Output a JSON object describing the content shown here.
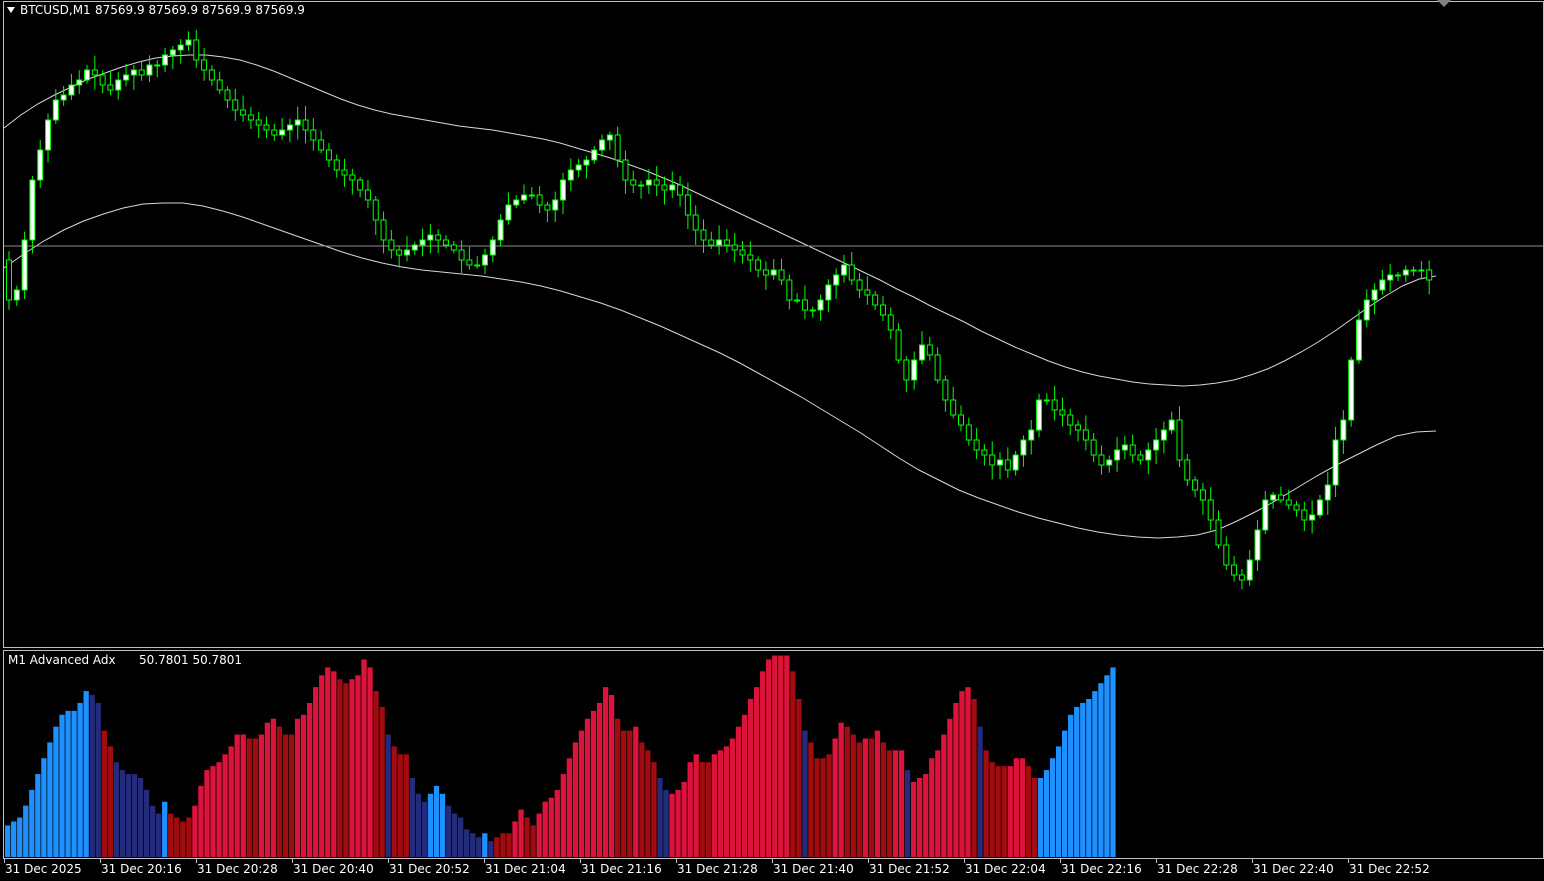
{
  "header": {
    "symbol": "BTCUSD,M1",
    "ohlc": "87569.9 87569.9 87569.9 87569.9"
  },
  "indicator": {
    "name": "M1 Advanced Adx",
    "values": "50.7801 50.7801"
  },
  "colors": {
    "background": "#000000",
    "frame": "#c0c0c0",
    "bull": "#00ff00",
    "bear": "#00ff00",
    "bull_body": "#ffffff",
    "bear_body": "#000000",
    "band": "#d8d8d8",
    "bid_line": "#8c8c8c",
    "hist_light_blue": "#1e90ff",
    "hist_dark_blue": "#232b7a",
    "hist_crimson": "#dc143c",
    "hist_dark_red": "#a00c0f"
  },
  "chart_data": {
    "type": "candlestick",
    "title": "BTCUSD,M1",
    "bid_price": 87569.9,
    "time_axis": [
      "31 Dec 2025",
      "31 Dec 20:16",
      "31 Dec 20:28",
      "31 Dec 20:40",
      "31 Dec 20:52",
      "31 Dec 21:04",
      "31 Dec 21:16",
      "31 Dec 21:28",
      "31 Dec 21:40",
      "31 Dec 21:52",
      "31 Dec 22:04",
      "31 Dec 22:16",
      "31 Dec 22:28",
      "31 Dec 22:40",
      "31 Dec 22:52"
    ],
    "price_path": [
      260,
      300,
      290,
      240,
      180,
      150,
      120,
      100,
      95,
      85,
      80,
      70,
      75,
      85,
      90,
      80,
      75,
      70,
      75,
      65,
      65,
      55,
      50,
      45,
      40,
      60,
      70,
      80,
      90,
      100,
      110,
      115,
      120,
      125,
      130,
      135,
      130,
      125,
      120,
      130,
      140,
      150,
      160,
      170,
      175,
      180,
      190,
      200,
      220,
      240,
      250,
      255,
      250,
      245,
      240,
      235,
      240,
      245,
      250,
      260,
      265,
      265,
      255,
      240,
      220,
      205,
      200,
      195,
      195,
      205,
      210,
      200,
      180,
      170,
      165,
      160,
      150,
      140,
      135,
      160,
      180,
      185,
      185,
      180,
      185,
      190,
      185,
      195,
      215,
      230,
      240,
      245,
      240,
      245,
      250,
      255,
      260,
      270,
      275,
      270,
      280,
      300,
      300,
      310,
      310,
      300,
      285,
      275,
      265,
      280,
      290,
      295,
      305,
      315,
      330,
      360,
      380,
      360,
      345,
      355,
      380,
      400,
      415,
      425,
      440,
      450,
      455,
      465,
      460,
      470,
      455,
      440,
      430,
      400,
      400,
      410,
      415,
      425,
      430,
      440,
      455,
      465,
      460,
      450,
      445,
      455,
      460,
      450,
      440,
      430,
      420,
      460,
      480,
      490,
      500,
      520,
      545,
      565,
      575,
      580,
      560,
      530,
      500,
      495,
      500,
      505,
      510,
      520,
      515,
      500,
      485,
      440,
      420,
      360,
      320,
      300,
      290,
      280,
      275,
      275,
      270,
      270,
      270,
      280
    ],
    "upper_band": [
      128,
      115,
      104,
      95,
      87,
      79,
      73,
      67,
      62,
      58,
      56,
      55,
      55,
      57,
      60,
      65,
      71,
      78,
      85,
      92,
      99,
      105,
      110,
      114,
      117,
      120,
      123,
      126,
      128,
      130,
      133,
      136,
      139,
      143,
      148,
      153,
      158,
      164,
      170,
      177,
      184,
      192,
      200,
      208,
      216,
      224,
      232,
      240,
      248,
      256,
      264,
      272,
      280,
      289,
      297,
      306,
      314,
      322,
      331,
      339,
      347,
      354,
      361,
      367,
      372,
      376,
      379,
      382,
      384,
      385,
      386,
      385,
      383,
      380,
      375,
      369,
      361,
      352,
      342,
      331,
      319,
      307,
      296,
      286,
      279,
      276
    ],
    "lower_band": [
      268,
      254,
      241,
      230,
      221,
      214,
      208,
      204,
      203,
      203,
      206,
      211,
      217,
      224,
      231,
      238,
      245,
      252,
      258,
      263,
      267,
      270,
      272,
      274,
      276,
      279,
      282,
      286,
      291,
      297,
      303,
      310,
      318,
      326,
      335,
      344,
      353,
      363,
      374,
      385,
      396,
      408,
      420,
      432,
      445,
      458,
      470,
      480,
      490,
      498,
      505,
      512,
      518,
      523,
      528,
      532,
      535,
      537,
      538,
      537,
      535,
      530,
      521,
      511,
      500,
      488,
      476,
      465,
      455,
      445,
      436,
      432,
      431
    ],
    "histogram": [
      {
        "v": 8,
        "c": "hist_light_blue"
      },
      {
        "v": 9,
        "c": "hist_light_blue"
      },
      {
        "v": 10,
        "c": "hist_light_blue"
      },
      {
        "v": 13,
        "c": "hist_light_blue"
      },
      {
        "v": 17,
        "c": "hist_light_blue"
      },
      {
        "v": 21,
        "c": "hist_light_blue"
      },
      {
        "v": 25,
        "c": "hist_light_blue"
      },
      {
        "v": 29,
        "c": "hist_light_blue"
      },
      {
        "v": 33,
        "c": "hist_light_blue"
      },
      {
        "v": 36,
        "c": "hist_light_blue"
      },
      {
        "v": 37,
        "c": "hist_light_blue"
      },
      {
        "v": 37,
        "c": "hist_light_blue"
      },
      {
        "v": 39,
        "c": "hist_light_blue"
      },
      {
        "v": 42,
        "c": "hist_light_blue"
      },
      {
        "v": 41,
        "c": "hist_dark_blue"
      },
      {
        "v": 39,
        "c": "hist_dark_blue"
      },
      {
        "v": 32,
        "c": "hist_dark_red"
      },
      {
        "v": 28,
        "c": "hist_dark_red"
      },
      {
        "v": 24,
        "c": "hist_dark_blue"
      },
      {
        "v": 22,
        "c": "hist_dark_blue"
      },
      {
        "v": 21,
        "c": "hist_dark_blue"
      },
      {
        "v": 21,
        "c": "hist_dark_blue"
      },
      {
        "v": 20,
        "c": "hist_dark_blue"
      },
      {
        "v": 17,
        "c": "hist_dark_blue"
      },
      {
        "v": 13,
        "c": "hist_dark_blue"
      },
      {
        "v": 11,
        "c": "hist_dark_blue"
      },
      {
        "v": 14,
        "c": "hist_light_blue"
      },
      {
        "v": 11,
        "c": "hist_dark_red"
      },
      {
        "v": 10,
        "c": "hist_dark_red"
      },
      {
        "v": 9,
        "c": "hist_dark_red"
      },
      {
        "v": 10,
        "c": "hist_dark_red"
      },
      {
        "v": 13,
        "c": "hist_crimson"
      },
      {
        "v": 18,
        "c": "hist_crimson"
      },
      {
        "v": 22,
        "c": "hist_crimson"
      },
      {
        "v": 23,
        "c": "hist_crimson"
      },
      {
        "v": 24,
        "c": "hist_crimson"
      },
      {
        "v": 26,
        "c": "hist_crimson"
      },
      {
        "v": 28,
        "c": "hist_crimson"
      },
      {
        "v": 31,
        "c": "hist_crimson"
      },
      {
        "v": 31,
        "c": "hist_crimson"
      },
      {
        "v": 30,
        "c": "hist_dark_red"
      },
      {
        "v": 30,
        "c": "hist_dark_red"
      },
      {
        "v": 31,
        "c": "hist_crimson"
      },
      {
        "v": 34,
        "c": "hist_crimson"
      },
      {
        "v": 35,
        "c": "hist_crimson"
      },
      {
        "v": 33,
        "c": "hist_dark_red"
      },
      {
        "v": 31,
        "c": "hist_dark_red"
      },
      {
        "v": 31,
        "c": "hist_dark_red"
      },
      {
        "v": 35,
        "c": "hist_crimson"
      },
      {
        "v": 36,
        "c": "hist_crimson"
      },
      {
        "v": 39,
        "c": "hist_crimson"
      },
      {
        "v": 43,
        "c": "hist_crimson"
      },
      {
        "v": 46,
        "c": "hist_crimson"
      },
      {
        "v": 48,
        "c": "hist_crimson"
      },
      {
        "v": 47,
        "c": "hist_crimson"
      },
      {
        "v": 45,
        "c": "hist_dark_red"
      },
      {
        "v": 44,
        "c": "hist_dark_red"
      },
      {
        "v": 45,
        "c": "hist_crimson"
      },
      {
        "v": 46,
        "c": "hist_crimson"
      },
      {
        "v": 50,
        "c": "hist_crimson"
      },
      {
        "v": 48,
        "c": "hist_crimson"
      },
      {
        "v": 42,
        "c": "hist_dark_red"
      },
      {
        "v": 38,
        "c": "hist_dark_red"
      },
      {
        "v": 31,
        "c": "hist_dark_blue"
      },
      {
        "v": 28,
        "c": "hist_dark_red"
      },
      {
        "v": 26,
        "c": "hist_dark_red"
      },
      {
        "v": 26,
        "c": "hist_dark_red"
      },
      {
        "v": 20,
        "c": "hist_dark_blue"
      },
      {
        "v": 16,
        "c": "hist_dark_blue"
      },
      {
        "v": 14,
        "c": "hist_dark_blue"
      },
      {
        "v": 16,
        "c": "hist_light_blue"
      },
      {
        "v": 18,
        "c": "hist_light_blue"
      },
      {
        "v": 16,
        "c": "hist_light_blue"
      },
      {
        "v": 13,
        "c": "hist_dark_blue"
      },
      {
        "v": 11,
        "c": "hist_dark_blue"
      },
      {
        "v": 10,
        "c": "hist_dark_blue"
      },
      {
        "v": 7,
        "c": "hist_dark_blue"
      },
      {
        "v": 6,
        "c": "hist_dark_blue"
      },
      {
        "v": 5,
        "c": "hist_dark_blue"
      },
      {
        "v": 6,
        "c": "hist_light_blue"
      },
      {
        "v": 4,
        "c": "hist_dark_blue"
      },
      {
        "v": 5,
        "c": "hist_dark_red"
      },
      {
        "v": 6,
        "c": "hist_dark_red"
      },
      {
        "v": 6,
        "c": "hist_dark_red"
      },
      {
        "v": 9,
        "c": "hist_crimson"
      },
      {
        "v": 12,
        "c": "hist_crimson"
      },
      {
        "v": 10,
        "c": "hist_dark_red"
      },
      {
        "v": 8,
        "c": "hist_dark_red"
      },
      {
        "v": 11,
        "c": "hist_crimson"
      },
      {
        "v": 14,
        "c": "hist_crimson"
      },
      {
        "v": 15,
        "c": "hist_crimson"
      },
      {
        "v": 17,
        "c": "hist_crimson"
      },
      {
        "v": 21,
        "c": "hist_crimson"
      },
      {
        "v": 25,
        "c": "hist_crimson"
      },
      {
        "v": 29,
        "c": "hist_crimson"
      },
      {
        "v": 32,
        "c": "hist_crimson"
      },
      {
        "v": 35,
        "c": "hist_crimson"
      },
      {
        "v": 37,
        "c": "hist_crimson"
      },
      {
        "v": 39,
        "c": "hist_crimson"
      },
      {
        "v": 43,
        "c": "hist_crimson"
      },
      {
        "v": 41,
        "c": "hist_crimson"
      },
      {
        "v": 35,
        "c": "hist_dark_red"
      },
      {
        "v": 32,
        "c": "hist_dark_red"
      },
      {
        "v": 32,
        "c": "hist_dark_red"
      },
      {
        "v": 33,
        "c": "hist_crimson"
      },
      {
        "v": 29,
        "c": "hist_dark_red"
      },
      {
        "v": 27,
        "c": "hist_dark_red"
      },
      {
        "v": 24,
        "c": "hist_dark_red"
      },
      {
        "v": 20,
        "c": "hist_dark_blue"
      },
      {
        "v": 17,
        "c": "hist_dark_blue"
      },
      {
        "v": 16,
        "c": "hist_crimson"
      },
      {
        "v": 17,
        "c": "hist_crimson"
      },
      {
        "v": 19,
        "c": "hist_crimson"
      },
      {
        "v": 24,
        "c": "hist_crimson"
      },
      {
        "v": 26,
        "c": "hist_crimson"
      },
      {
        "v": 24,
        "c": "hist_dark_red"
      },
      {
        "v": 24,
        "c": "hist_dark_red"
      },
      {
        "v": 26,
        "c": "hist_crimson"
      },
      {
        "v": 27,
        "c": "hist_crimson"
      },
      {
        "v": 28,
        "c": "hist_crimson"
      },
      {
        "v": 30,
        "c": "hist_crimson"
      },
      {
        "v": 33,
        "c": "hist_crimson"
      },
      {
        "v": 36,
        "c": "hist_crimson"
      },
      {
        "v": 40,
        "c": "hist_crimson"
      },
      {
        "v": 43,
        "c": "hist_crimson"
      },
      {
        "v": 47,
        "c": "hist_crimson"
      },
      {
        "v": 50,
        "c": "hist_crimson"
      },
      {
        "v": 51,
        "c": "hist_crimson"
      },
      {
        "v": 51,
        "c": "hist_crimson"
      },
      {
        "v": 51,
        "c": "hist_crimson"
      },
      {
        "v": 47,
        "c": "hist_dark_red"
      },
      {
        "v": 40,
        "c": "hist_dark_red"
      },
      {
        "v": 32,
        "c": "hist_dark_blue"
      },
      {
        "v": 29,
        "c": "hist_dark_red"
      },
      {
        "v": 25,
        "c": "hist_dark_red"
      },
      {
        "v": 25,
        "c": "hist_dark_red"
      },
      {
        "v": 26,
        "c": "hist_dark_red"
      },
      {
        "v": 30,
        "c": "hist_crimson"
      },
      {
        "v": 34,
        "c": "hist_crimson"
      },
      {
        "v": 33,
        "c": "hist_dark_red"
      },
      {
        "v": 31,
        "c": "hist_dark_red"
      },
      {
        "v": 29,
        "c": "hist_dark_red"
      },
      {
        "v": 30,
        "c": "hist_crimson"
      },
      {
        "v": 30,
        "c": "hist_dark_red"
      },
      {
        "v": 32,
        "c": "hist_crimson"
      },
      {
        "v": 29,
        "c": "hist_dark_red"
      },
      {
        "v": 27,
        "c": "hist_dark_red"
      },
      {
        "v": 27,
        "c": "hist_crimson"
      },
      {
        "v": 27,
        "c": "hist_crimson"
      },
      {
        "v": 22,
        "c": "hist_dark_blue"
      },
      {
        "v": 19,
        "c": "hist_crimson"
      },
      {
        "v": 20,
        "c": "hist_crimson"
      },
      {
        "v": 21,
        "c": "hist_crimson"
      },
      {
        "v": 25,
        "c": "hist_crimson"
      },
      {
        "v": 27,
        "c": "hist_crimson"
      },
      {
        "v": 31,
        "c": "hist_crimson"
      },
      {
        "v": 35,
        "c": "hist_crimson"
      },
      {
        "v": 39,
        "c": "hist_crimson"
      },
      {
        "v": 42,
        "c": "hist_crimson"
      },
      {
        "v": 43,
        "c": "hist_crimson"
      },
      {
        "v": 40,
        "c": "hist_dark_red"
      },
      {
        "v": 33,
        "c": "hist_dark_blue"
      },
      {
        "v": 27,
        "c": "hist_dark_red"
      },
      {
        "v": 24,
        "c": "hist_dark_red"
      },
      {
        "v": 23,
        "c": "hist_dark_red"
      },
      {
        "v": 23,
        "c": "hist_dark_red"
      },
      {
        "v": 23,
        "c": "hist_crimson"
      },
      {
        "v": 25,
        "c": "hist_crimson"
      },
      {
        "v": 25,
        "c": "hist_crimson"
      },
      {
        "v": 23,
        "c": "hist_dark_red"
      },
      {
        "v": 20,
        "c": "hist_dark_red"
      },
      {
        "v": 20,
        "c": "hist_light_blue"
      },
      {
        "v": 22,
        "c": "hist_light_blue"
      },
      {
        "v": 25,
        "c": "hist_light_blue"
      },
      {
        "v": 28,
        "c": "hist_light_blue"
      },
      {
        "v": 32,
        "c": "hist_light_blue"
      },
      {
        "v": 36,
        "c": "hist_light_blue"
      },
      {
        "v": 38,
        "c": "hist_light_blue"
      },
      {
        "v": 39,
        "c": "hist_light_blue"
      },
      {
        "v": 40,
        "c": "hist_light_blue"
      },
      {
        "v": 42,
        "c": "hist_light_blue"
      },
      {
        "v": 44,
        "c": "hist_light_blue"
      },
      {
        "v": 46,
        "c": "hist_light_blue"
      },
      {
        "v": 48,
        "c": "hist_light_blue"
      }
    ]
  }
}
